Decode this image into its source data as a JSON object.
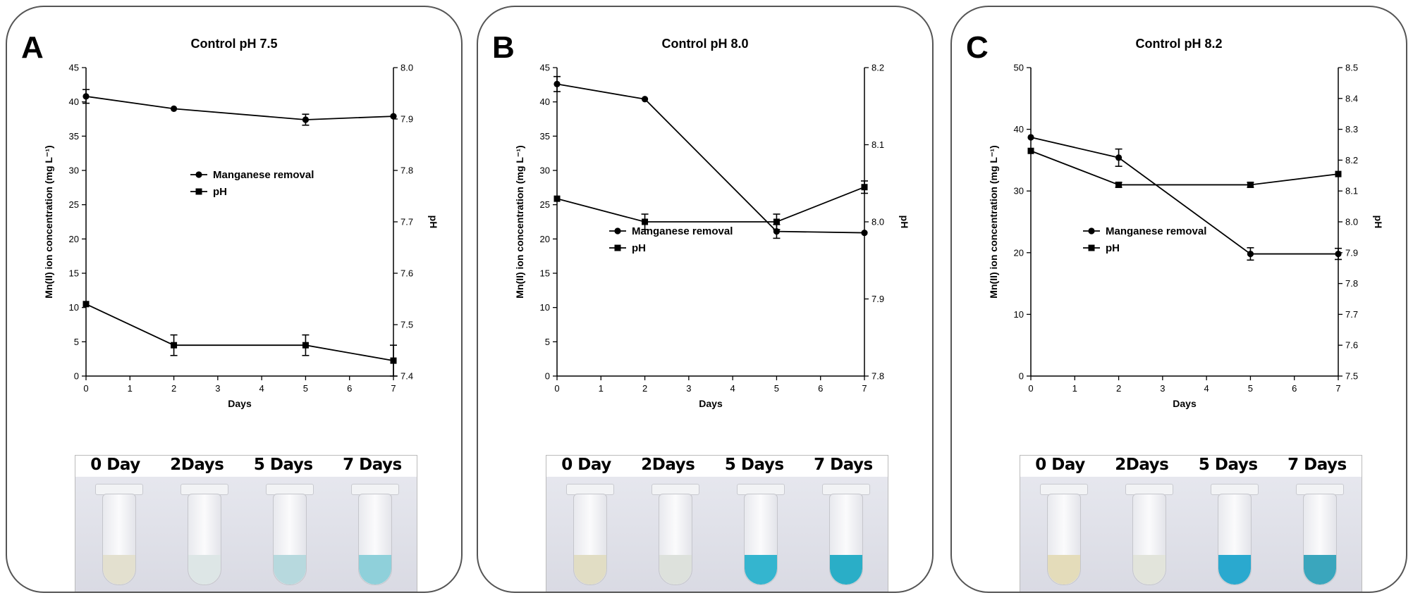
{
  "panels": [
    {
      "letter": "A",
      "photo": {
        "day_labels": [
          "0 Day",
          "2Days",
          "5 Days",
          "7 Days"
        ],
        "tube_colors": [
          "#e3e0cf",
          "#dde6e6",
          "#b7d9de",
          "#8fd0da"
        ]
      }
    },
    {
      "letter": "B",
      "photo": {
        "day_labels": [
          "0 Day",
          "2Days",
          "5 Days",
          "7 Days"
        ],
        "tube_colors": [
          "#e1ddc4",
          "#dde1dc",
          "#34b5cf",
          "#2aaec7"
        ]
      }
    },
    {
      "letter": "C",
      "photo": {
        "day_labels": [
          "0 Day",
          "2Days",
          "5 Days",
          "7 Days"
        ],
        "tube_colors": [
          "#e4dcba",
          "#e2e4db",
          "#2aa9cf",
          "#3aa6bd"
        ]
      }
    }
  ],
  "chart_data": [
    {
      "type": "line",
      "title": "Control pH 7.5",
      "xlabel": "Days",
      "ylabel": "Mn(II) ion concentration (mg L⁻¹)",
      "ylabel_right": "pH",
      "xlim": [
        0,
        7
      ],
      "xticks": [
        "0",
        "1",
        "2",
        "3",
        "4",
        "5",
        "6",
        "7"
      ],
      "ylim": [
        0,
        45
      ],
      "yticks": [
        "0",
        "5",
        "10",
        "15",
        "20",
        "25",
        "30",
        "35",
        "40",
        "45"
      ],
      "ylim_right": [
        7.4,
        8.0
      ],
      "yticks_right": [
        "7.4",
        "7.5",
        "7.6",
        "7.7",
        "7.8",
        "7.9",
        "8.0"
      ],
      "legend_position": "center",
      "series": [
        {
          "name": "Manganese removal",
          "marker": "circle",
          "axis": "left",
          "x": [
            0,
            2,
            5,
            7
          ],
          "values": [
            40.8,
            39.0,
            37.4,
            37.9
          ],
          "errors": [
            1.0,
            0,
            0.8,
            0
          ]
        },
        {
          "name": "pH",
          "marker": "square",
          "axis": "right",
          "x": [
            0,
            2,
            5,
            7
          ],
          "values": [
            7.54,
            7.46,
            7.46,
            7.43
          ],
          "errors": [
            0,
            0.02,
            0.02,
            0.03
          ]
        }
      ]
    },
    {
      "type": "line",
      "title": "Control pH 8.0",
      "xlabel": "Days",
      "ylabel": "Mn(II) ion concentration (mg L⁻¹)",
      "ylabel_right": "pH",
      "xlim": [
        0,
        7
      ],
      "xticks": [
        "0",
        "1",
        "2",
        "3",
        "4",
        "5",
        "6",
        "7"
      ],
      "ylim": [
        0,
        45
      ],
      "yticks": [
        "0",
        "5",
        "10",
        "15",
        "20",
        "25",
        "30",
        "35",
        "40",
        "45"
      ],
      "ylim_right": [
        7.8,
        8.2
      ],
      "yticks_right": [
        "7.8",
        "7.9",
        "8.0",
        "8.1",
        "8.2"
      ],
      "legend_position": "center-left",
      "series": [
        {
          "name": "Manganese removal",
          "marker": "circle",
          "axis": "left",
          "x": [
            0,
            2,
            5,
            7
          ],
          "values": [
            42.6,
            40.4,
            21.1,
            20.9
          ],
          "errors": [
            1.1,
            0,
            1.0,
            0
          ]
        },
        {
          "name": "pH",
          "marker": "square",
          "axis": "right",
          "x": [
            0,
            2,
            5,
            7
          ],
          "values": [
            8.03,
            8.0,
            8.0,
            8.045
          ],
          "errors": [
            0,
            0.01,
            0.01,
            0.008
          ]
        }
      ]
    },
    {
      "type": "line",
      "title": "Control pH 8.2",
      "xlabel": "Days",
      "ylabel": "Mn(II) ion concentration (mg L⁻¹)",
      "ylabel_right": "pH",
      "xlim": [
        0,
        7
      ],
      "xticks": [
        "0",
        "1",
        "2",
        "3",
        "4",
        "5",
        "6",
        "7"
      ],
      "ylim": [
        0,
        50
      ],
      "yticks": [
        "0",
        "10",
        "20",
        "30",
        "40",
        "50"
      ],
      "ylim_right": [
        7.5,
        8.5
      ],
      "yticks_right": [
        "7.5",
        "7.6",
        "7.7",
        "7.8",
        "7.9",
        "8.0",
        "8.1",
        "8.2",
        "8.3",
        "8.4",
        "8.5"
      ],
      "legend_position": "center-left",
      "series": [
        {
          "name": "Manganese removal",
          "marker": "circle",
          "axis": "left",
          "x": [
            0,
            2,
            5,
            7
          ],
          "values": [
            38.7,
            35.4,
            19.8,
            19.8
          ],
          "errors": [
            0,
            1.4,
            1.0,
            0.9
          ]
        },
        {
          "name": "pH",
          "marker": "square",
          "axis": "right",
          "x": [
            0,
            2,
            5,
            7
          ],
          "values": [
            8.23,
            8.12,
            8.12,
            8.155
          ],
          "errors": [
            0,
            0.008,
            0.008,
            0
          ]
        }
      ]
    }
  ]
}
